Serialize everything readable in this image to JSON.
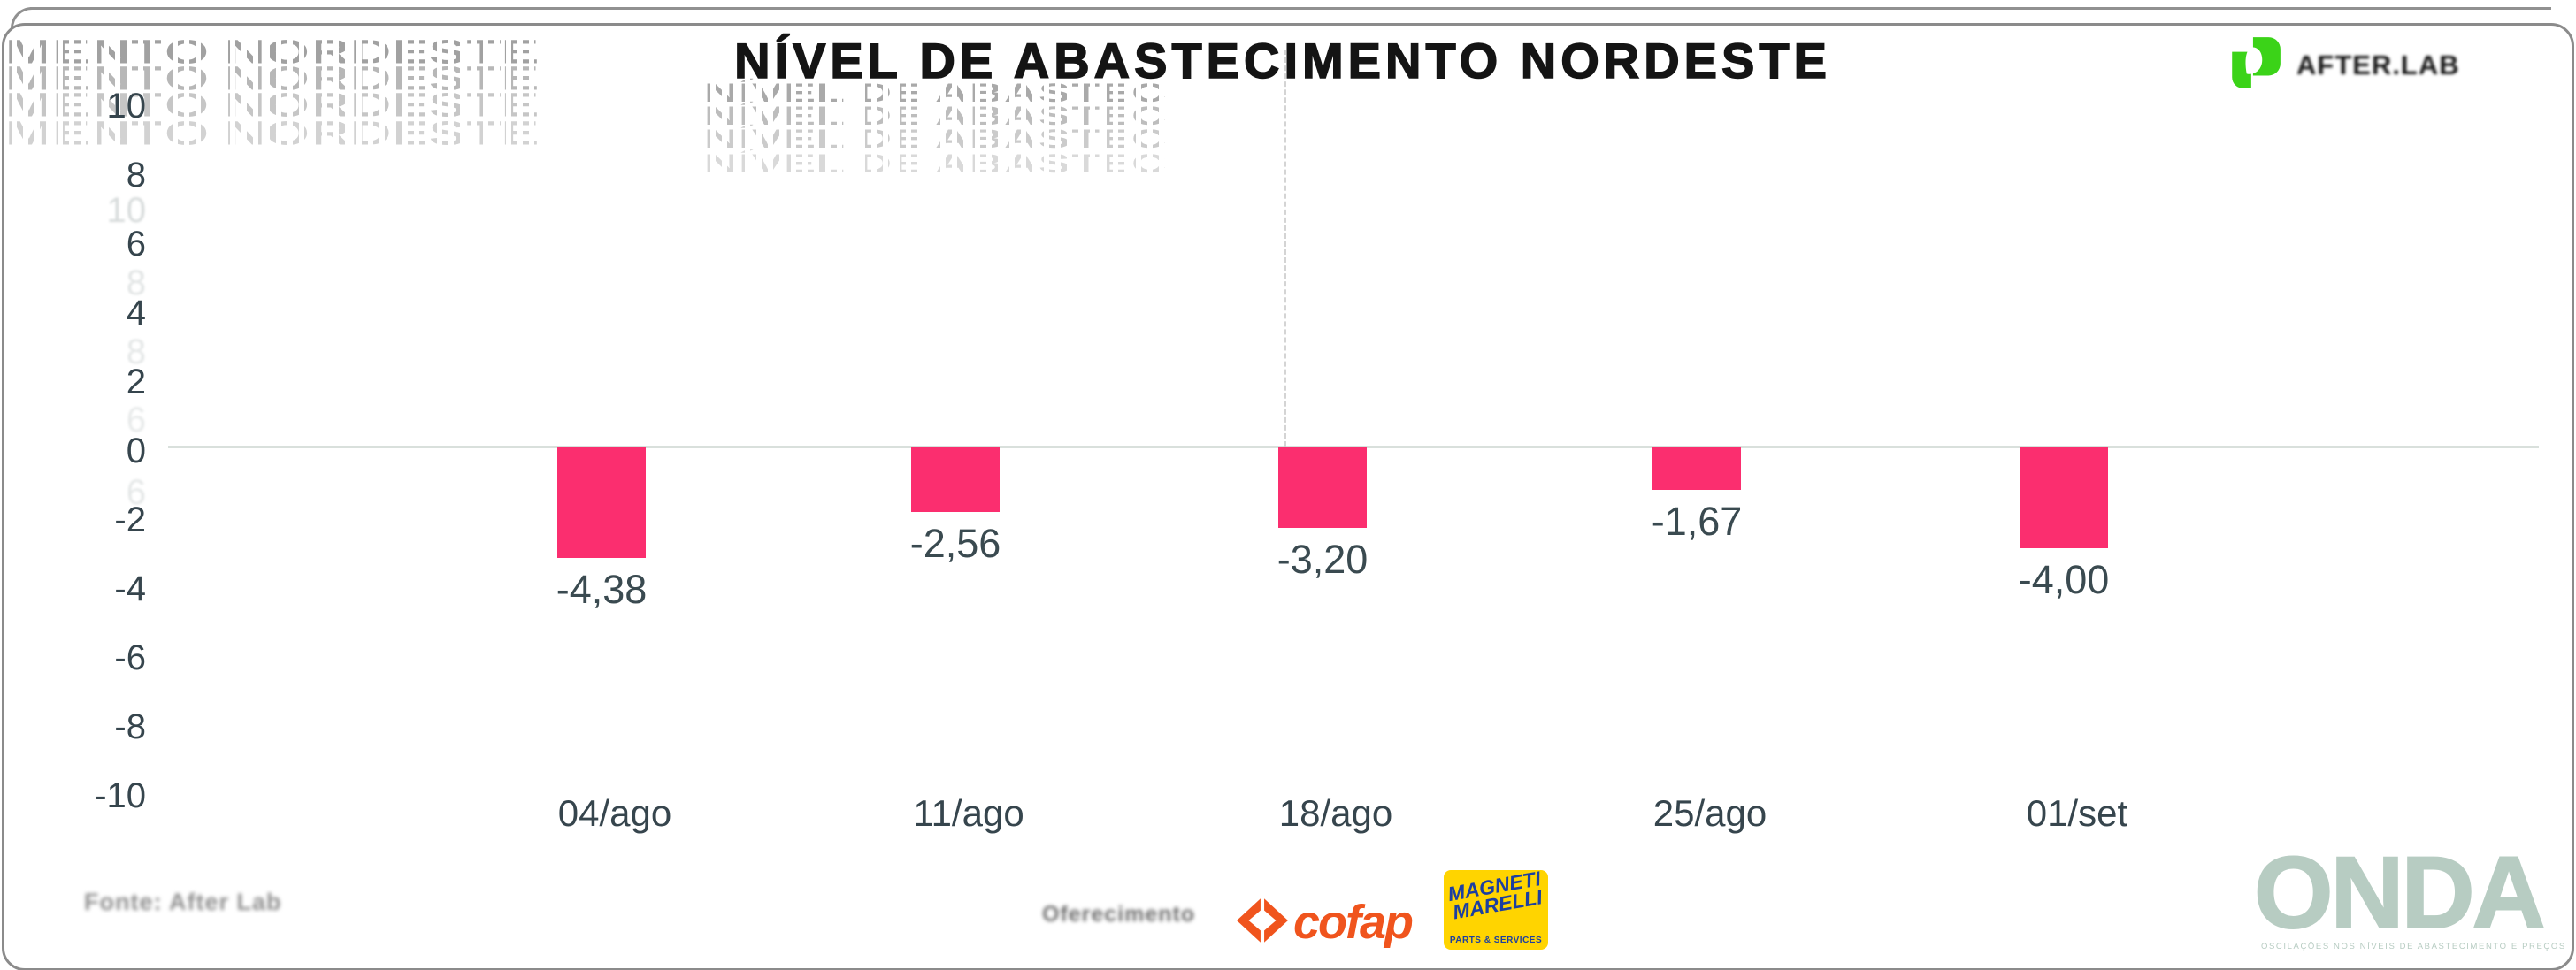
{
  "header": {
    "title": "NÍVEL DE ABASTECIMENTO NORDESTE",
    "ghost_left_text": "MENTO NORDESTE",
    "ghost_echo_text": "NÍVEL DE ABASTEC",
    "brand": "AFTER.LAB"
  },
  "chart_data": {
    "type": "bar",
    "title": "NÍVEL DE ABASTECIMENTO NORDESTE",
    "categories": [
      "04/ago",
      "11/ago",
      "18/ago",
      "25/ago",
      "01/set"
    ],
    "values": [
      -4.38,
      -2.56,
      -3.2,
      -1.67,
      -4.0
    ],
    "value_labels": [
      "-4,38",
      "-2,56",
      "-3,20",
      "-1,67",
      "-4,00"
    ],
    "y_ticks": [
      "10",
      "8",
      "6",
      "4",
      "2",
      "0",
      "-2",
      "-4",
      "-6",
      "-8",
      "-10"
    ],
    "ylim": [
      -10,
      10
    ],
    "xlabel": "",
    "ylabel": "",
    "grid": false,
    "zero_line": true,
    "legend_position": "none",
    "bar_color": "#fb2e6f",
    "label_color": "#3a4a50"
  },
  "artifacts": {
    "ghost_ticks": [
      {
        "label": "10",
        "y": 238,
        "opacity": 0.3
      },
      {
        "label": "8",
        "y": 320,
        "opacity": 0.22
      },
      {
        "label": "8",
        "y": 398,
        "opacity": 0.2
      },
      {
        "label": "6",
        "y": 475,
        "opacity": 0.18
      },
      {
        "label": "6",
        "y": 557,
        "opacity": 0.2
      }
    ]
  },
  "footer": {
    "source": "Fonte: After Lab",
    "sponsor_label": "Oferecimento",
    "cofap": "cofap",
    "marelli": {
      "line1": "MAGNETI",
      "line2": "MARELLI",
      "tagline": "PARTS & SERVICES"
    },
    "onda": {
      "title": "ONDA",
      "subtitle": "OSCILAÇÕES NOS NÍVEIS DE ABASTECIMENTO E PREÇOS"
    }
  },
  "colors": {
    "bar_pink": "#fb2e6f",
    "axis_slate": "#36454d",
    "brand_green": "#3bd318",
    "cofap_orange": "#f0541d",
    "marelli_yellow": "#ffd400",
    "marelli_blue": "#1c3fa0",
    "onda_sage": "#b7ccc2",
    "frame_gray": "#8b8b8b"
  }
}
